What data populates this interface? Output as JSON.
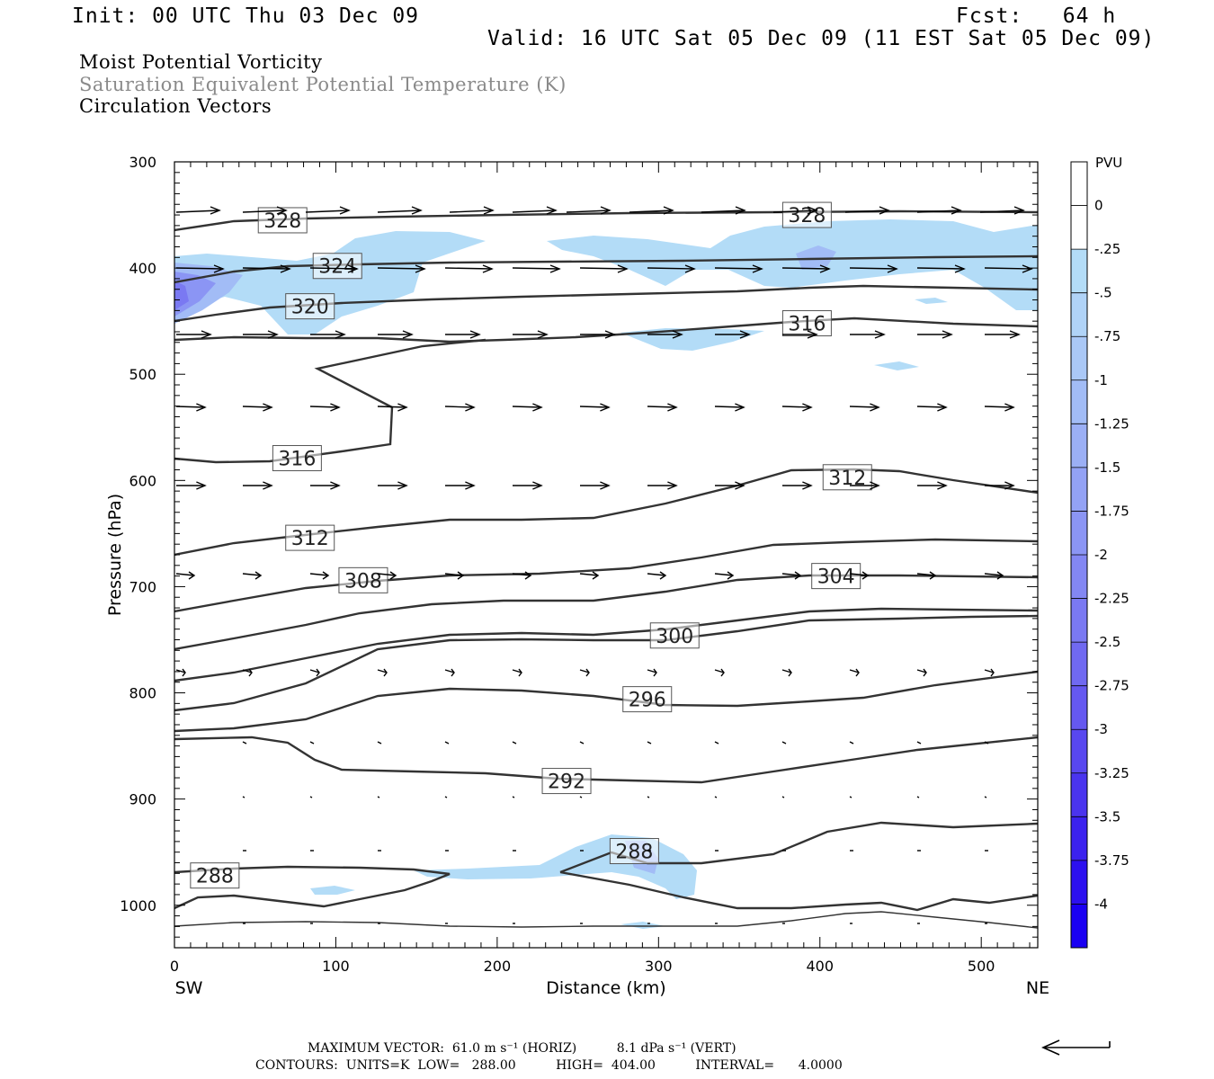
{
  "header": {
    "init": "Init: 00 UTC Thu 03 Dec 09",
    "fcst": "Fcst:   64 h",
    "valid": "Valid: 16 UTC Sat 05 Dec 09 (11 EST Sat 05 Dec 09)"
  },
  "fields": {
    "line1": "Moist Potential Vorticity",
    "line2": "Saturation Equivalent Potential Temperature (K)",
    "line3": "Circulation Vectors"
  },
  "footer": {
    "max_vector": "MAXIMUM VECTOR:  61.0 m s⁻¹ (HORIZ)          8.1 dPa s⁻¹ (VERT)",
    "contours": "CONTOURS:  UNITS=K  LOW=   288.00          HIGH=  404.00          INTERVAL=      4.0000"
  },
  "colors": {
    "pv_light": "#b3dcf7",
    "pv_mid": "#8f9ff5",
    "pv_dark": "#6a78ef",
    "contour": "#333333"
  },
  "chart_data": {
    "type": "contour",
    "xlabel": "Distance (km)",
    "ylabel": "Pressure (hPa)",
    "xlim": [
      0,
      535
    ],
    "ylim": [
      1040,
      300
    ],
    "x_ticks": [
      "0",
      "100",
      "200",
      "300",
      "400",
      "500"
    ],
    "y_ticks": [
      "300",
      "400",
      "500",
      "600",
      "700",
      "800",
      "900",
      "1000"
    ],
    "x_end_labels": {
      "left": "SW",
      "right": "NE"
    },
    "colorbar": {
      "unit": "PVU",
      "labels": [
        "0",
        "-.25",
        "-.5",
        "-.75",
        "-1",
        "-1.25",
        "-1.5",
        "-1.75",
        "-2",
        "-2.25",
        "-2.5",
        "-2.75",
        "-3",
        "-3.25",
        "-3.5",
        "-3.75",
        "-4"
      ],
      "colors": [
        "#ffffff",
        "#ffffff",
        "#b3dcf7",
        "#b0d3f7",
        "#aac8f6",
        "#a2bcf6",
        "#9baff5",
        "#93a2f5",
        "#8b95f4",
        "#8387f3",
        "#7a79f2",
        "#7069f1",
        "#6558f0",
        "#5847ef",
        "#4a34ee",
        "#3b22ee",
        "#2c10ef",
        "#1a00f2"
      ]
    },
    "contour_labels": [
      {
        "text": "328",
        "x": 67,
        "p": 355
      },
      {
        "text": "328",
        "x": 392,
        "p": 350
      },
      {
        "text": "324",
        "x": 101,
        "p": 398
      },
      {
        "text": "320",
        "x": 84,
        "p": 436
      },
      {
        "text": "316",
        "x": 392,
        "p": 452
      },
      {
        "text": "316",
        "x": 76,
        "p": 579
      },
      {
        "text": "312",
        "x": 84,
        "p": 654
      },
      {
        "text": "312",
        "x": 417,
        "p": 597
      },
      {
        "text": "308",
        "x": 117,
        "p": 694
      },
      {
        "text": "304",
        "x": 410,
        "p": 690
      },
      {
        "text": "300",
        "x": 310,
        "p": 746
      },
      {
        "text": "296",
        "x": 293,
        "p": 806
      },
      {
        "text": "292",
        "x": 243,
        "p": 883
      },
      {
        "text": "288",
        "x": 285,
        "p": 949
      },
      {
        "text": "288",
        "x": 25,
        "p": 972
      }
    ],
    "vector_key_direction": "left"
  }
}
